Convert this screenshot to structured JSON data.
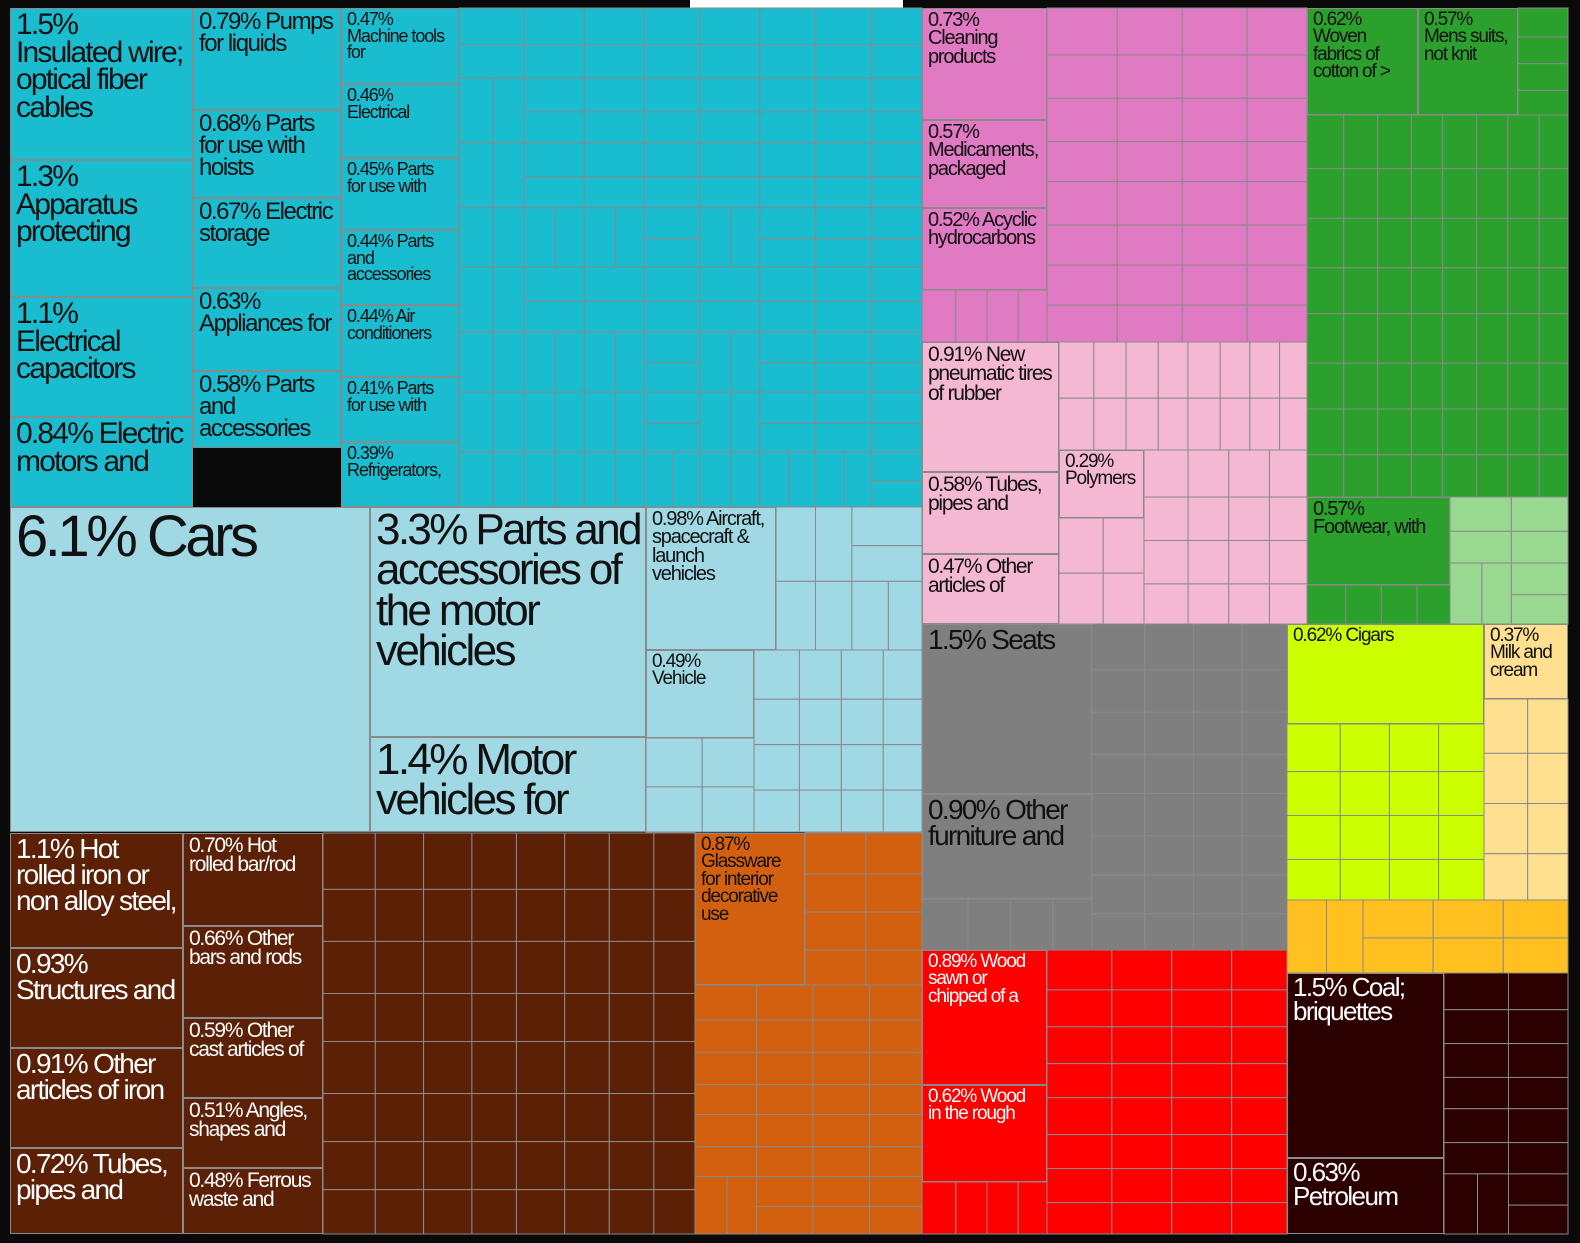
{
  "chart_data": {
    "type": "treemap",
    "items": [
      {
        "value": 1.5,
        "value_label": "1.5%",
        "name": "Insulated wire; optical fiber cables",
        "color": "#1abccf"
      },
      {
        "value": 1.3,
        "value_label": "1.3%",
        "name": "Apparatus protecting",
        "color": "#1abccf"
      },
      {
        "value": 1.1,
        "value_label": "1.1%",
        "name": "Electrical capacitors",
        "color": "#1abccf"
      },
      {
        "value": 0.84,
        "value_label": "0.84%",
        "name": "Electric motors and",
        "color": "#1abccf"
      },
      {
        "value": 0.79,
        "value_label": "0.79%",
        "name": "Pumps for liquids",
        "color": "#1abccf"
      },
      {
        "value": 0.68,
        "value_label": "0.68%",
        "name": "Parts for use with hoists",
        "color": "#1abccf"
      },
      {
        "value": 0.67,
        "value_label": "0.67%",
        "name": "Electric storage",
        "color": "#1abccf"
      },
      {
        "value": 0.63,
        "value_label": "0.63%",
        "name": "Appliances for",
        "color": "#1abccf"
      },
      {
        "value": 0.58,
        "value_label": "0.58%",
        "name": "Parts and accessories",
        "color": "#1abccf"
      },
      {
        "value": 0.47,
        "value_label": "0.47%",
        "name": "Machine tools for",
        "color": "#1abccf"
      },
      {
        "value": 0.46,
        "value_label": "0.46%",
        "name": "Electrical",
        "color": "#1abccf"
      },
      {
        "value": 0.45,
        "value_label": "0.45%",
        "name": "Parts for use with",
        "color": "#1abccf"
      },
      {
        "value": 0.44,
        "value_label": "0.44%",
        "name": "Parts and accessories",
        "color": "#1abccf"
      },
      {
        "value": 0.44,
        "value_label": "0.44%",
        "name": "Air conditioners",
        "color": "#1abccf"
      },
      {
        "value": 0.41,
        "value_label": "0.41%",
        "name": "Parts for use with",
        "color": "#1abccf"
      },
      {
        "value": 0.39,
        "value_label": "0.39%",
        "name": "Refrigerators,",
        "color": "#1abccf"
      },
      {
        "value": 6.1,
        "value_label": "6.1%",
        "name": "Cars",
        "color": "#a0d8e4"
      },
      {
        "value": 3.3,
        "value_label": "3.3%",
        "name": "Parts and accessories of the motor vehicles",
        "color": "#a0d8e4"
      },
      {
        "value": 1.4,
        "value_label": "1.4%",
        "name": "Motor vehicles for",
        "color": "#a0d8e4"
      },
      {
        "value": 0.98,
        "value_label": "0.98%",
        "name": "Aircraft, spacecraft & launch vehicles",
        "color": "#a0d8e4"
      },
      {
        "value": 0.49,
        "value_label": "0.49%",
        "name": "Vehicle",
        "color": "#a0d8e4"
      },
      {
        "value": 1.1,
        "value_label": "1.1%",
        "name": "Hot rolled iron or non alloy steel,",
        "color": "#5c2006"
      },
      {
        "value": 0.93,
        "value_label": "0.93%",
        "name": "Structures and",
        "color": "#5c2006"
      },
      {
        "value": 0.91,
        "value_label": "0.91%",
        "name": "Other articles of iron",
        "color": "#5c2006"
      },
      {
        "value": 0.72,
        "value_label": "0.72%",
        "name": "Tubes, pipes and",
        "color": "#5c2006"
      },
      {
        "value": 0.7,
        "value_label": "0.70%",
        "name": "Hot rolled bar/rod",
        "color": "#5c2006"
      },
      {
        "value": 0.66,
        "value_label": "0.66%",
        "name": "Other bars and rods",
        "color": "#5c2006"
      },
      {
        "value": 0.59,
        "value_label": "0.59%",
        "name": "Other cast articles of",
        "color": "#5c2006"
      },
      {
        "value": 0.51,
        "value_label": "0.51%",
        "name": "Angles, shapes and",
        "color": "#5c2006"
      },
      {
        "value": 0.48,
        "value_label": "0.48%",
        "name": "Ferrous waste and",
        "color": "#5c2006"
      },
      {
        "value": 0.87,
        "value_label": "0.87%",
        "name": "Glassware for interior decorative use",
        "color": "#d2600f"
      },
      {
        "value": 0.73,
        "value_label": "0.73%",
        "name": "Cleaning products",
        "color": "#e07ac2"
      },
      {
        "value": 0.57,
        "value_label": "0.57%",
        "name": "Medicaments, packaged",
        "color": "#e07ac2"
      },
      {
        "value": 0.52,
        "value_label": "0.52%",
        "name": "Acyclic hydrocarbons",
        "color": "#e07ac2"
      },
      {
        "value": 0.91,
        "value_label": "0.91%",
        "name": "New pneumatic tires of rubber",
        "color": "#f5b8d2"
      },
      {
        "value": 0.58,
        "value_label": "0.58%",
        "name": "Tubes, pipes and",
        "color": "#f5b8d2"
      },
      {
        "value": 0.47,
        "value_label": "0.47%",
        "name": "Other articles of",
        "color": "#f5b8d2"
      },
      {
        "value": 0.29,
        "value_label": "0.29%",
        "name": "Polymers",
        "color": "#f5b8d2"
      },
      {
        "value": 0.62,
        "value_label": "0.62%",
        "name": "Woven fabrics of cotton of >",
        "color": "#2ca02c"
      },
      {
        "value": 0.57,
        "value_label": "0.57%",
        "name": "Mens suits, not knit",
        "color": "#2ca02c"
      },
      {
        "value": 0.57,
        "value_label": "0.57%",
        "name": "Footwear, with",
        "color": "#2ca02c"
      },
      {
        "value": 1.5,
        "value_label": "1.5%",
        "name": "Seats",
        "color": "#7f7f7f"
      },
      {
        "value": 0.9,
        "value_label": "0.90%",
        "name": "Other furniture and",
        "color": "#7f7f7f"
      },
      {
        "value": 0.62,
        "value_label": "0.62%",
        "name": "Cigars",
        "color": "#ccff00"
      },
      {
        "value": 0.37,
        "value_label": "0.37%",
        "name": "Milk and cream",
        "color": "#ffe090"
      },
      {
        "value": 0.89,
        "value_label": "0.89%",
        "name": "Wood sawn or chipped of a",
        "color": "#ff0000"
      },
      {
        "value": 0.62,
        "value_label": "0.62%",
        "name": "Wood in the rough",
        "color": "#ff0000"
      },
      {
        "value": 1.5,
        "value_label": "1.5%",
        "name": "Coal; briquettes",
        "color": "#2a0000"
      },
      {
        "value": 0.63,
        "value_label": "0.63%",
        "name": "Petroleum",
        "color": "#2a0000"
      }
    ]
  }
}
